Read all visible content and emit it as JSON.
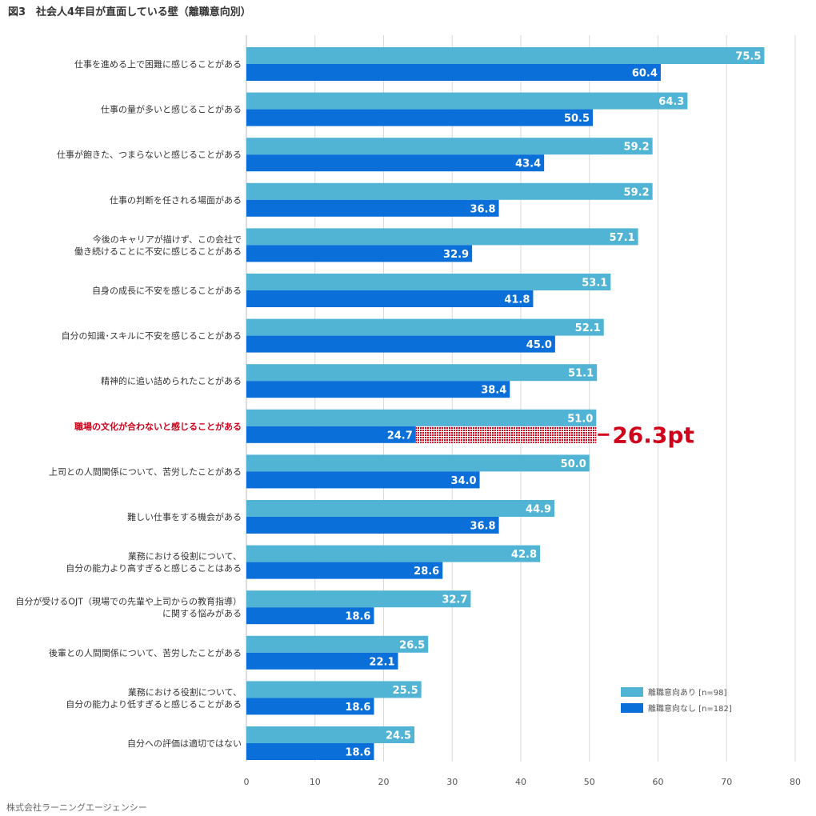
{
  "title": "図3　社会人4年目が直面している壁（離職意向別）",
  "footer": "株式会社ラーニングエージェンシー",
  "colors": {
    "series1": "#52b4d5",
    "series2": "#0a6fd8",
    "highlight": "#d0021b",
    "grid": "#d9d9d9"
  },
  "chart_data": {
    "type": "bar",
    "orientation": "horizontal",
    "xlim": [
      0,
      80
    ],
    "xticks": [
      0,
      10,
      20,
      30,
      40,
      50,
      60,
      70,
      80
    ],
    "grid": true,
    "legend_position": "bottom-right",
    "categories": [
      [
        "仕事を進める上で困難に感じることがある"
      ],
      [
        "仕事の量が多いと感じることがある"
      ],
      [
        "仕事が飽きた、つまらないと感じることがある"
      ],
      [
        "仕事の判断を任される場面がある"
      ],
      [
        "今後のキャリアが描けず、この会社で",
        "働き続けることに不安に感じることがある"
      ],
      [
        "自身の成長に不安を感じることがある"
      ],
      [
        "自分の知識･スキルに不安を感じることがある"
      ],
      [
        "精神的に追い詰められたことがある"
      ],
      [
        "職場の文化が合わないと感じることがある"
      ],
      [
        "上司との人間関係について、苦労したことがある"
      ],
      [
        "難しい仕事をする機会がある"
      ],
      [
        "業務における役割について、",
        "自分の能力より高すぎると感じることはある"
      ],
      [
        "自分が受けるOJT（現場での先輩や上司からの教育指導）",
        "に関する悩みがある"
      ],
      [
        "後輩との人間関係について、苦労したことがある"
      ],
      [
        "業務における役割について、",
        "自分の能力より低すぎると感じることがある"
      ],
      [
        "自分への評価は適切ではない"
      ]
    ],
    "series": [
      {
        "name": "離職意向あり [n=98]",
        "values": [
          75.5,
          64.3,
          59.2,
          59.2,
          57.1,
          53.1,
          52.1,
          51.1,
          51.0,
          50.0,
          44.9,
          42.8,
          32.7,
          26.5,
          25.5,
          24.5
        ]
      },
      {
        "name": "離職意向なし [n=182]",
        "values": [
          60.4,
          50.5,
          43.4,
          36.8,
          32.9,
          41.8,
          45.0,
          38.4,
          24.7,
          34.0,
          36.8,
          28.6,
          18.6,
          22.1,
          18.6,
          18.6
        ]
      }
    ],
    "highlight": {
      "category_index": 8,
      "difference_label": "26.3pt"
    }
  }
}
